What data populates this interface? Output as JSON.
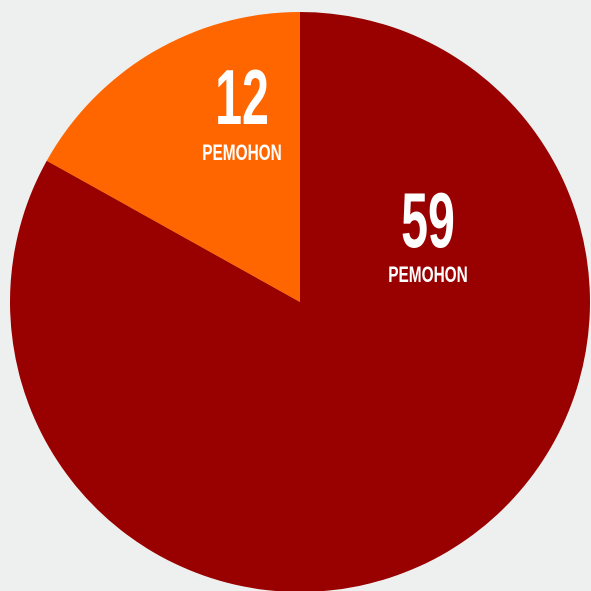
{
  "chart_data": {
    "type": "pie",
    "values": [
      59,
      12
    ],
    "categories": [
      "PEMOHON",
      "PEMOHON"
    ],
    "colors": [
      "#990000",
      "#ff6600"
    ]
  }
}
